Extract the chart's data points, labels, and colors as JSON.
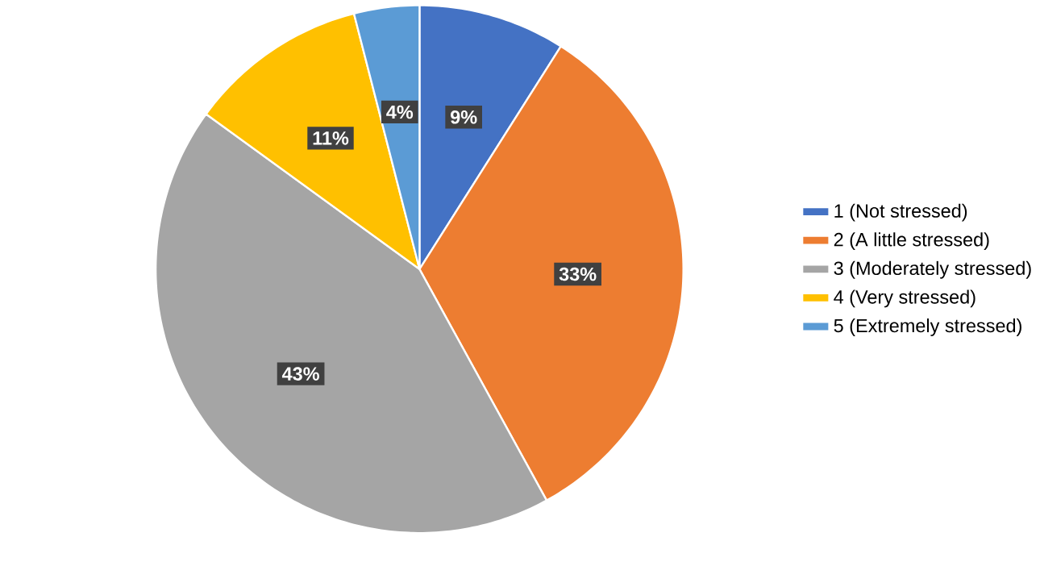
{
  "chart_data": {
    "type": "pie",
    "categories": [
      "1 (Not stressed)",
      "2 (A little stressed)",
      "3 (Moderately stressed)",
      "4 (Very stressed)",
      "5 (Extremely stressed)"
    ],
    "values": [
      9,
      33,
      43,
      11,
      4
    ],
    "value_labels": [
      "9%",
      "33%",
      "43%",
      "11%",
      "4%"
    ],
    "colors": [
      "#4472c4",
      "#ed7d31",
      "#a5a5a5",
      "#ffc000",
      "#5b9bd5"
    ],
    "legend": "right"
  }
}
